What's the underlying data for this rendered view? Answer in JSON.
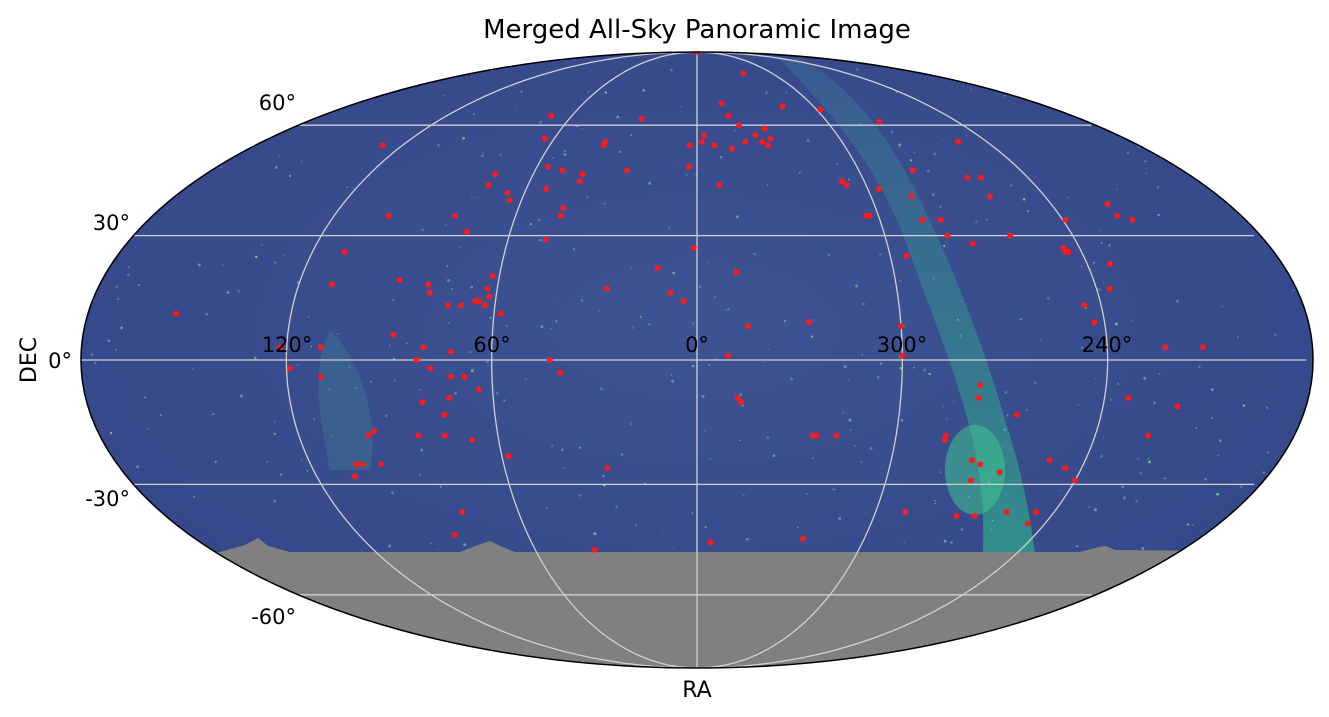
{
  "chart_data": {
    "type": "scatter",
    "projection": "mollweide",
    "title": "Merged All-Sky Panoramic Image",
    "xlabel": "RA",
    "ylabel": "DEC",
    "ra_tick_labels": [
      "120°",
      "60°",
      "0°",
      "300°",
      "240°"
    ],
    "dec_tick_labels": [
      "60°",
      "30°",
      "0°",
      "-30°",
      "-60°"
    ],
    "grid": true,
    "colors": {
      "background_sky": "#3a4f8c",
      "milky_way": "#2f9e8c",
      "no_coverage": "#808080",
      "marker": "#ff1a1a",
      "grid": "#d0d0d0"
    },
    "no_coverage_dec_below": -45,
    "points": [
      {
        "ra": 0,
        "dec": 90
      },
      {
        "ra": 323,
        "dec": 78
      },
      {
        "ra": 347,
        "dec": 67
      },
      {
        "ra": 345,
        "dec": 63
      },
      {
        "ra": 70,
        "dec": 63
      },
      {
        "ra": 26,
        "dec": 62
      },
      {
        "ra": 298,
        "dec": 65
      },
      {
        "ra": 316,
        "dec": 66
      },
      {
        "ra": 276,
        "dec": 61
      },
      {
        "ra": 128,
        "dec": 54
      },
      {
        "ra": 64,
        "dec": 56
      },
      {
        "ra": 38,
        "dec": 54
      },
      {
        "ra": 38,
        "dec": 55
      },
      {
        "ra": 3,
        "dec": 54
      },
      {
        "ra": 358,
        "dec": 55
      },
      {
        "ra": 353,
        "dec": 54
      },
      {
        "ra": 346,
        "dec": 53
      },
      {
        "ra": 340,
        "dec": 55
      },
      {
        "ra": 333,
        "dec": 55
      },
      {
        "ra": 335,
        "dec": 57
      },
      {
        "ra": 330,
        "dec": 59
      },
      {
        "ra": 329,
        "dec": 56
      },
      {
        "ra": 357,
        "dec": 57
      },
      {
        "ra": 341,
        "dec": 60
      },
      {
        "ra": 331,
        "dec": 54
      },
      {
        "ra": 252,
        "dec": 55
      },
      {
        "ra": 74,
        "dec": 46
      },
      {
        "ra": 74,
        "dec": 43
      },
      {
        "ra": 56,
        "dec": 48
      },
      {
        "ra": 53,
        "dec": 42
      },
      {
        "ra": 50,
        "dec": 47
      },
      {
        "ra": 42,
        "dec": 46
      },
      {
        "ra": 42,
        "dec": 44
      },
      {
        "ra": 26,
        "dec": 47
      },
      {
        "ra": 3,
        "dec": 48
      },
      {
        "ra": 352,
        "dec": 43
      },
      {
        "ra": 308,
        "dec": 44
      },
      {
        "ra": 307,
        "dec": 43
      },
      {
        "ra": 296,
        "dec": 42
      },
      {
        "ra": 280,
        "dec": 47
      },
      {
        "ra": 262,
        "dec": 45
      },
      {
        "ra": 259,
        "dec": 40
      },
      {
        "ra": 257,
        "dec": 45
      },
      {
        "ra": 102,
        "dec": 35
      },
      {
        "ra": 80,
        "dec": 35
      },
      {
        "ra": 66,
        "dec": 41
      },
      {
        "ra": 64,
        "dec": 39
      },
      {
        "ra": 45,
        "dec": 37
      },
      {
        "ra": 45,
        "dec": 35
      },
      {
        "ra": 304,
        "dec": 35
      },
      {
        "ra": 303,
        "dec": 35
      },
      {
        "ra": 286,
        "dec": 40
      },
      {
        "ra": 286,
        "dec": 34
      },
      {
        "ra": 280,
        "dec": 34
      },
      {
        "ra": 280,
        "dec": 30
      },
      {
        "ra": 260,
        "dec": 30
      },
      {
        "ra": 239,
        "dec": 34
      },
      {
        "ra": 221,
        "dec": 38
      },
      {
        "ra": 221,
        "dec": 35
      },
      {
        "ra": 217,
        "dec": 34
      },
      {
        "ra": 74,
        "dec": 31
      },
      {
        "ra": 110,
        "dec": 26
      },
      {
        "ra": 48,
        "dec": 29
      },
      {
        "ra": 1,
        "dec": 27
      },
      {
        "ra": 295,
        "dec": 25
      },
      {
        "ra": 273,
        "dec": 28
      },
      {
        "ra": 244,
        "dec": 26
      },
      {
        "ra": 245,
        "dec": 26
      },
      {
        "ra": 245,
        "dec": 27
      },
      {
        "ra": 233,
        "dec": 23
      },
      {
        "ra": 110,
        "dec": 18
      },
      {
        "ra": 90,
        "dec": 19
      },
      {
        "ra": 81,
        "dec": 18
      },
      {
        "ra": 80,
        "dec": 16
      },
      {
        "ra": 62,
        "dec": 20
      },
      {
        "ra": 63,
        "dec": 17
      },
      {
        "ra": 62,
        "dec": 15
      },
      {
        "ra": 65,
        "dec": 14
      },
      {
        "ra": 66,
        "dec": 14
      },
      {
        "ra": 63,
        "dec": 13
      },
      {
        "ra": 70,
        "dec": 13
      },
      {
        "ra": 74,
        "dec": 13
      },
      {
        "ra": 58,
        "dec": 11
      },
      {
        "ra": 27,
        "dec": 17
      },
      {
        "ra": 12,
        "dec": 22
      },
      {
        "ra": 8,
        "dec": 16
      },
      {
        "ra": 4,
        "dec": 14
      },
      {
        "ra": 348,
        "dec": 21
      },
      {
        "ra": 327,
        "dec": 9
      },
      {
        "ra": 245,
        "dec": 13
      },
      {
        "ra": 236,
        "dec": 17
      },
      {
        "ra": 243,
        "dec": 9
      },
      {
        "ra": 300,
        "dec": 8
      },
      {
        "ra": 345,
        "dec": 8
      },
      {
        "ra": 154,
        "dec": 11
      },
      {
        "ra": 122,
        "dec": 3
      },
      {
        "ra": 110,
        "dec": 3
      },
      {
        "ra": 89,
        "dec": 6
      },
      {
        "ra": 80,
        "dec": 3
      },
      {
        "ra": 72,
        "dec": 2
      },
      {
        "ra": 43,
        "dec": 0
      },
      {
        "ra": 351,
        "dec": 1
      },
      {
        "ra": 300,
        "dec": 1
      },
      {
        "ra": 212,
        "dec": 3
      },
      {
        "ra": 223,
        "dec": 3
      },
      {
        "ra": 119,
        "dec": -2
      },
      {
        "ra": 82,
        "dec": 0
      },
      {
        "ra": 78,
        "dec": -2
      },
      {
        "ra": 72,
        "dec": -4
      },
      {
        "ra": 68,
        "dec": -4
      },
      {
        "ra": 40,
        "dec": -3
      },
      {
        "ra": 64,
        "dec": -7
      },
      {
        "ra": 110,
        "dec": -4
      },
      {
        "ra": 81,
        "dec": -10
      },
      {
        "ra": 73,
        "dec": -9
      },
      {
        "ra": 75,
        "dec": -13
      },
      {
        "ra": 76,
        "dec": -18
      },
      {
        "ra": 68,
        "dec": -19
      },
      {
        "ra": 348,
        "dec": -9
      },
      {
        "ra": 347,
        "dec": -10
      },
      {
        "ra": 277,
        "dec": -6
      },
      {
        "ra": 277,
        "dec": -9
      },
      {
        "ra": 325,
        "dec": -18
      },
      {
        "ra": 324,
        "dec": -18
      },
      {
        "ra": 318,
        "dec": -18
      },
      {
        "ra": 285,
        "dec": -18
      },
      {
        "ra": 285,
        "dec": -19
      },
      {
        "ra": 265,
        "dec": -13
      },
      {
        "ra": 233,
        "dec": -9
      },
      {
        "ra": 224,
        "dec": -18
      },
      {
        "ra": 218,
        "dec": -11
      },
      {
        "ra": 99,
        "dec": -18
      },
      {
        "ra": 97,
        "dec": -17
      },
      {
        "ra": 84,
        "dec": -18
      },
      {
        "ra": 108,
        "dec": -28
      },
      {
        "ra": 98,
        "dec": -25
      },
      {
        "ra": 104,
        "dec": -25
      },
      {
        "ra": 106,
        "dec": -25
      },
      {
        "ra": 58,
        "dec": -23
      },
      {
        "ra": 28,
        "dec": -26
      },
      {
        "ra": 275,
        "dec": -24
      },
      {
        "ra": 272,
        "dec": -25
      },
      {
        "ra": 265,
        "dec": -27
      },
      {
        "ra": 273,
        "dec": -29
      },
      {
        "ra": 251,
        "dec": -24
      },
      {
        "ra": 245,
        "dec": -26
      },
      {
        "ra": 240,
        "dec": -29
      },
      {
        "ra": 79,
        "dec": -37
      },
      {
        "ra": 266,
        "dec": -38
      },
      {
        "ra": 272,
        "dec": -38
      },
      {
        "ra": 290,
        "dec": -37
      },
      {
        "ra": 256,
        "dec": -37
      },
      {
        "ra": 246,
        "dec": -37
      },
      {
        "ra": 246,
        "dec": -40
      },
      {
        "ra": 86,
        "dec": -43
      },
      {
        "ra": 38,
        "dec": -47
      },
      {
        "ra": 355,
        "dec": -45
      },
      {
        "ra": 322,
        "dec": -44
      }
    ]
  }
}
